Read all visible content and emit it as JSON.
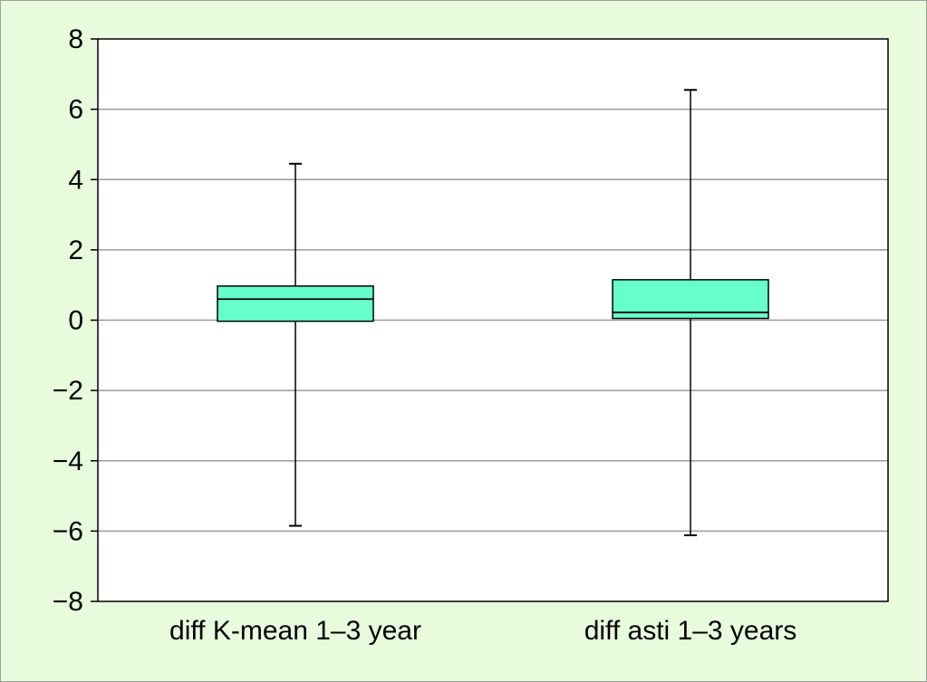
{
  "colors": {
    "frame_background": "#e8fbdc",
    "plot_background": "#ffffff",
    "gridline": "#9a9a9a",
    "box_fill": "#66ffcc",
    "stroke": "#000000"
  },
  "chart_data": {
    "type": "boxplot",
    "title": "",
    "xlabel": "",
    "ylabel": "",
    "ylim": [
      -8,
      8
    ],
    "y_ticks": [
      8,
      6,
      4,
      2,
      0,
      -2,
      -4,
      -6,
      -8
    ],
    "y_tick_labels": [
      "8",
      "6",
      "4",
      "2",
      "0",
      "−2",
      "−4",
      "−6",
      "−8"
    ],
    "grid": true,
    "categories": [
      "diff K-mean 1–3 year",
      "diff asti 1–3 years"
    ],
    "boxes": [
      {
        "category": "diff K-mean 1–3 year",
        "min": -5.85,
        "q1": -0.03,
        "median": 0.6,
        "q3": 0.97,
        "max": 4.45
      },
      {
        "category": "diff asti 1–3 years",
        "min": -6.12,
        "q1": 0.05,
        "median": 0.22,
        "q3": 1.15,
        "max": 6.55
      }
    ]
  }
}
